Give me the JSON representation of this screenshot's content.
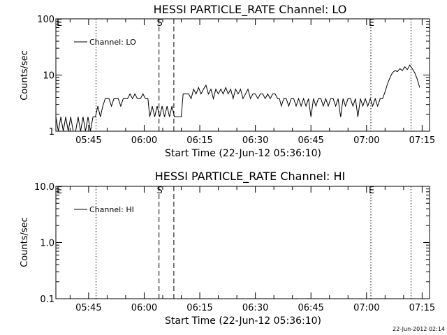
{
  "chart_data": [
    {
      "type": "line",
      "title": "HESSI PARTICLE_RATE Channel: LO",
      "xlabel": "Start Time (22-Jun-12 05:36:10)",
      "ylabel": "Counts/sec",
      "y_scale": "log",
      "ylim": [
        1,
        100
      ],
      "y_ticks": [
        1,
        10,
        100
      ],
      "y_tick_labels": [
        "1",
        "10",
        "100"
      ],
      "xlim": [
        "05:36:10",
        "07:17:00"
      ],
      "x_ticks": [
        "05:45",
        "06:00",
        "06:15",
        "06:30",
        "06:45",
        "07:00",
        "07:15"
      ],
      "legend": {
        "position": "top-left",
        "entries": [
          "Channel: LO"
        ]
      },
      "markers": [
        {
          "label": "E",
          "time": "05:36:10",
          "style": "none"
        },
        {
          "label": "",
          "time": "05:47:00",
          "style": "dotted"
        },
        {
          "label": "S",
          "time": "06:04:00",
          "style": "dashed"
        },
        {
          "label": "",
          "time": "06:08:00",
          "style": "dashed"
        },
        {
          "label": "E",
          "time": "07:01:10",
          "style": "dotted"
        },
        {
          "label": "",
          "time": "07:12:00",
          "style": "dotted"
        }
      ],
      "series": [
        {
          "name": "Channel: LO",
          "points": [
            [
              "05:36:10",
              1.8
            ],
            [
              "05:36:50",
              1.0
            ],
            [
              "05:37:30",
              1.8
            ],
            [
              "05:38:10",
              1.0
            ],
            [
              "05:38:50",
              1.8
            ],
            [
              "05:39:30",
              1.0
            ],
            [
              "05:40:10",
              1.8
            ],
            [
              "05:40:50",
              1.0
            ],
            [
              "05:41:30",
              1.0
            ],
            [
              "05:42:10",
              1.8
            ],
            [
              "05:42:50",
              1.0
            ],
            [
              "05:43:30",
              1.8
            ],
            [
              "05:44:10",
              1.0
            ],
            [
              "05:44:50",
              1.8
            ],
            [
              "05:45:30",
              1.0
            ],
            [
              "05:46:10",
              1.8
            ],
            [
              "05:46:50",
              1.8
            ],
            [
              "05:47:30",
              2.8
            ],
            [
              "05:48:10",
              1.8
            ],
            [
              "05:48:50",
              2.8
            ],
            [
              "05:49:30",
              3.8
            ],
            [
              "05:50:30",
              3.8
            ],
            [
              "05:51:10",
              2.8
            ],
            [
              "05:51:50",
              3.8
            ],
            [
              "05:53:00",
              3.8
            ],
            [
              "05:53:40",
              2.8
            ],
            [
              "05:54:20",
              3.8
            ],
            [
              "05:55:30",
              3.8
            ],
            [
              "05:56:10",
              4.6
            ],
            [
              "05:56:50",
              3.8
            ],
            [
              "05:57:30",
              4.6
            ],
            [
              "05:58:10",
              3.8
            ],
            [
              "05:59:00",
              3.8
            ],
            [
              "05:59:40",
              4.6
            ],
            [
              "06:00:20",
              3.8
            ],
            [
              "06:01:00",
              3.8
            ],
            [
              "06:01:30",
              1.8
            ],
            [
              "06:02:10",
              2.8
            ],
            [
              "06:02:50",
              1.8
            ],
            [
              "06:03:30",
              2.8
            ],
            [
              "06:04:10",
              1.8
            ],
            [
              "06:04:50",
              2.8
            ],
            [
              "06:05:30",
              1.8
            ],
            [
              "06:06:10",
              2.8
            ],
            [
              "06:06:50",
              1.8
            ],
            [
              "06:07:30",
              2.8
            ],
            [
              "06:08:10",
              1.8
            ],
            [
              "06:10:00",
              1.8
            ],
            [
              "06:10:30",
              4.6
            ],
            [
              "06:12:00",
              4.6
            ],
            [
              "06:12:40",
              3.8
            ],
            [
              "06:13:20",
              5.6
            ],
            [
              "06:14:00",
              4.6
            ],
            [
              "06:14:40",
              6.0
            ],
            [
              "06:15:20",
              4.6
            ],
            [
              "06:16:00",
              5.6
            ],
            [
              "06:16:40",
              6.6
            ],
            [
              "06:17:20",
              4.6
            ],
            [
              "06:18:00",
              5.6
            ],
            [
              "06:18:40",
              3.8
            ],
            [
              "06:19:20",
              5.6
            ],
            [
              "06:20:00",
              4.6
            ],
            [
              "06:20:40",
              5.6
            ],
            [
              "06:21:20",
              4.6
            ],
            [
              "06:22:00",
              6.0
            ],
            [
              "06:22:40",
              4.6
            ],
            [
              "06:23:20",
              5.6
            ],
            [
              "06:24:00",
              3.8
            ],
            [
              "06:24:40",
              5.6
            ],
            [
              "06:25:20",
              4.6
            ],
            [
              "06:26:00",
              5.6
            ],
            [
              "06:26:40",
              3.8
            ],
            [
              "06:27:20",
              4.6
            ],
            [
              "06:28:00",
              5.6
            ],
            [
              "06:28:40",
              3.8
            ],
            [
              "06:29:20",
              4.6
            ],
            [
              "06:30:00",
              4.6
            ],
            [
              "06:30:40",
              3.8
            ],
            [
              "06:31:20",
              4.6
            ],
            [
              "06:32:00",
              4.6
            ],
            [
              "06:32:40",
              3.8
            ],
            [
              "06:33:20",
              4.6
            ],
            [
              "06:34:00",
              3.8
            ],
            [
              "06:34:40",
              4.6
            ],
            [
              "06:35:20",
              4.6
            ],
            [
              "06:36:00",
              3.8
            ],
            [
              "06:36:30",
              3.8
            ],
            [
              "06:37:00",
              2.8
            ],
            [
              "06:37:40",
              3.8
            ],
            [
              "06:38:20",
              3.8
            ],
            [
              "06:39:00",
              2.8
            ],
            [
              "06:39:40",
              3.8
            ],
            [
              "06:40:20",
              3.8
            ],
            [
              "06:41:00",
              2.8
            ],
            [
              "06:41:40",
              3.8
            ],
            [
              "06:42:20",
              2.8
            ],
            [
              "06:43:00",
              3.8
            ],
            [
              "06:43:40",
              2.8
            ],
            [
              "06:44:20",
              3.8
            ],
            [
              "06:45:00",
              1.8
            ],
            [
              "06:45:40",
              3.8
            ],
            [
              "06:46:20",
              2.8
            ],
            [
              "06:47:00",
              3.8
            ],
            [
              "06:47:40",
              3.8
            ],
            [
              "06:48:20",
              2.8
            ],
            [
              "06:49:00",
              3.8
            ],
            [
              "06:49:40",
              2.8
            ],
            [
              "06:50:20",
              3.8
            ],
            [
              "06:51:00",
              3.8
            ],
            [
              "06:51:40",
              2.8
            ],
            [
              "06:52:20",
              3.8
            ],
            [
              "06:53:00",
              1.8
            ],
            [
              "06:53:40",
              3.8
            ],
            [
              "06:54:20",
              2.8
            ],
            [
              "06:55:00",
              3.8
            ],
            [
              "06:55:40",
              3.8
            ],
            [
              "06:56:20",
              2.8
            ],
            [
              "06:57:00",
              3.8
            ],
            [
              "06:57:40",
              1.8
            ],
            [
              "06:58:20",
              3.8
            ],
            [
              "06:59:00",
              2.8
            ],
            [
              "06:59:40",
              3.8
            ],
            [
              "07:00:20",
              2.8
            ],
            [
              "07:01:00",
              3.8
            ],
            [
              "07:01:40",
              2.8
            ],
            [
              "07:02:20",
              3.8
            ],
            [
              "07:03:00",
              2.8
            ],
            [
              "07:03:40",
              3.8
            ],
            [
              "07:04:20",
              3.8
            ],
            [
              "07:05:00",
              5.0
            ],
            [
              "07:05:40",
              7.0
            ],
            [
              "07:06:20",
              9.0
            ],
            [
              "07:07:00",
              11.0
            ],
            [
              "07:07:40",
              12.0
            ],
            [
              "07:08:20",
              11.5
            ],
            [
              "07:09:00",
              13.0
            ],
            [
              "07:09:40",
              12.0
            ],
            [
              "07:10:20",
              14.0
            ],
            [
              "07:11:00",
              12.5
            ],
            [
              "07:11:40",
              15.0
            ],
            [
              "07:12:20",
              13.0
            ],
            [
              "07:13:00",
              11.0
            ],
            [
              "07:13:40",
              8.5
            ],
            [
              "07:14:20",
              6.0
            ]
          ]
        }
      ]
    },
    {
      "type": "line",
      "title": "HESSI PARTICLE_RATE Channel: HI",
      "xlabel": "Start Time (22-Jun-12 05:36:10)",
      "ylabel": "Counts/sec",
      "y_scale": "log",
      "ylim": [
        0.1,
        10
      ],
      "y_ticks": [
        0.1,
        1,
        10
      ],
      "y_tick_labels": [
        "0.1",
        "1.0",
        "10.0"
      ],
      "xlim": [
        "05:36:10",
        "07:17:00"
      ],
      "x_ticks": [
        "05:45",
        "06:00",
        "06:15",
        "06:30",
        "06:45",
        "07:00",
        "07:15"
      ],
      "legend": {
        "position": "top-left",
        "entries": [
          "Channel: HI"
        ]
      },
      "markers": [
        {
          "label": "E",
          "time": "05:36:10",
          "style": "none"
        },
        {
          "label": "",
          "time": "05:47:00",
          "style": "dotted"
        },
        {
          "label": "S",
          "time": "06:04:00",
          "style": "dashed"
        },
        {
          "label": "",
          "time": "06:08:00",
          "style": "dashed"
        },
        {
          "label": "E",
          "time": "07:01:10",
          "style": "dotted"
        },
        {
          "label": "",
          "time": "07:12:00",
          "style": "dotted"
        }
      ],
      "series": [
        {
          "name": "Channel: HI",
          "points": []
        }
      ]
    }
  ],
  "footer": {
    "timestamp": "22-Jun-2012 02:14"
  }
}
